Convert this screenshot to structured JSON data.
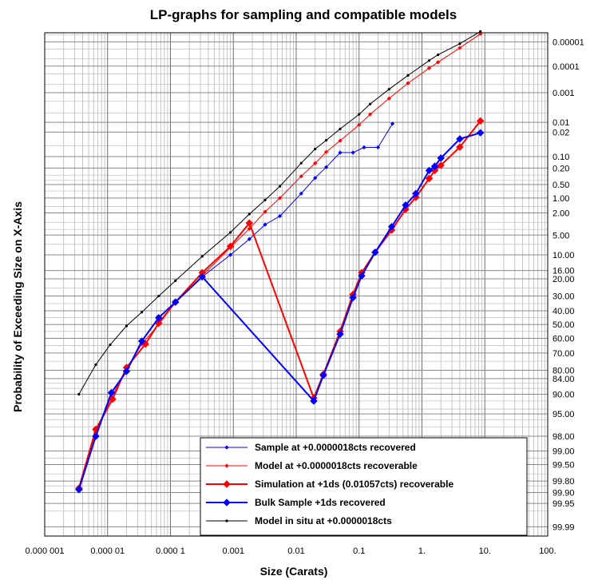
{
  "chart_data": {
    "type": "line",
    "title": "LP-graphs for sampling and compatible models",
    "xlabel": "Size (Carats)",
    "ylabel": "Probability of Exceeding Size on X-Axis",
    "x_scale": "log",
    "y_scale": "probability",
    "xlim": [
      1e-06,
      100
    ],
    "ylim_percent": [
      99.995,
      4e-06
    ],
    "grid": true,
    "legend_position": "bottom-right",
    "x_ticks": [
      "0.000 001",
      "0.000 01",
      "0.000 1",
      "0.001",
      "0.01",
      "0.1",
      "1.",
      "10.",
      "100."
    ],
    "x_tick_values": [
      1e-06,
      1e-05,
      0.0001,
      0.001,
      0.01,
      0.1,
      1,
      10,
      100
    ],
    "y_ticks": [
      "0.00001",
      "0.0001",
      "0.001",
      "0.01",
      "0.02",
      "0.10",
      "0.20",
      "0.50",
      "1.00",
      "2.00",
      "5.00",
      "10.00",
      "16.00",
      "20.00",
      "30.00",
      "40.00",
      "50.00",
      "60.00",
      "70.00",
      "80.00",
      "84.00",
      "90.00",
      "95.00",
      "98.00",
      "99.00",
      "99.50",
      "99.80",
      "99.90",
      "99.95",
      "99.99"
    ],
    "y_tick_values": [
      1e-05,
      0.0001,
      0.001,
      0.01,
      0.02,
      0.1,
      0.2,
      0.5,
      1,
      2,
      5,
      10,
      16,
      20,
      30,
      40,
      50,
      60,
      70,
      80,
      84,
      90,
      95,
      98,
      99,
      99.5,
      99.8,
      99.9,
      99.95,
      99.99
    ],
    "series": [
      {
        "name": "Sample at +0.0000018cts recovered",
        "color": "#0000ff",
        "marker": "small-diamond",
        "line_width": 1,
        "points": [
          [
            3.5e-06,
            99.88
          ],
          [
            6.5e-06,
            97.8
          ],
          [
            1.15e-05,
            89.5
          ],
          [
            2e-05,
            80.5
          ],
          [
            3.5e-05,
            62
          ],
          [
            6.5e-05,
            45
          ],
          [
            0.00012,
            34
          ],
          [
            0.00032,
            19
          ],
          [
            0.0009,
            10
          ],
          [
            0.0018,
            5.8
          ],
          [
            0.0032,
            3.3
          ],
          [
            0.0055,
            2.3
          ],
          [
            0.012,
            0.8
          ],
          [
            0.02,
            0.35
          ],
          [
            0.03,
            0.19
          ],
          [
            0.05,
            0.078
          ],
          [
            0.08,
            0.078
          ],
          [
            0.12,
            0.056
          ],
          [
            0.2,
            0.056
          ],
          [
            0.34,
            0.011
          ]
        ]
      },
      {
        "name": "Model at +0.0000018cts recoverable",
        "color": "#ff0000",
        "marker": "small-diamond",
        "line_width": 1,
        "points": [
          [
            3.5e-06,
            99.86
          ],
          [
            6.5e-06,
            97.6
          ],
          [
            1.15e-05,
            91
          ],
          [
            2e-05,
            79
          ],
          [
            3.5e-05,
            64
          ],
          [
            6.5e-05,
            50
          ],
          [
            0.00012,
            34
          ],
          [
            0.00032,
            18.5
          ],
          [
            0.0009,
            7.8
          ],
          [
            0.0018,
            3.9
          ],
          [
            0.0032,
            1.9
          ],
          [
            0.0055,
            1.0
          ],
          [
            0.012,
            0.32
          ],
          [
            0.02,
            0.15
          ],
          [
            0.03,
            0.075
          ],
          [
            0.05,
            0.036
          ],
          [
            0.1,
            0.012
          ],
          [
            0.15,
            0.0055
          ],
          [
            0.3,
            0.0016
          ],
          [
            0.6,
            0.00045
          ],
          [
            1.3,
            0.00012
          ],
          [
            1.8,
            7e-05
          ],
          [
            4,
            1.8e-05
          ],
          [
            8.5,
            4.5e-06
          ]
        ]
      },
      {
        "name": "Simulation at +1ds (0.01057cts) recoverable",
        "color": "#ff0000",
        "marker": "diamond",
        "line_width": 2,
        "points": [
          [
            3.5e-06,
            99.87
          ],
          [
            6.5e-06,
            97.3
          ],
          [
            1.2e-05,
            91.5
          ],
          [
            2e-05,
            78.5
          ],
          [
            4e-05,
            64
          ],
          [
            6.5e-05,
            49
          ],
          [
            0.00012,
            34
          ],
          [
            0.00032,
            17
          ],
          [
            0.0009,
            7.5
          ],
          [
            0.0018,
            3.1
          ],
          [
            0.019,
            91.2
          ],
          [
            0.027,
            82
          ],
          [
            0.05,
            55
          ],
          [
            0.08,
            29
          ],
          [
            0.11,
            17
          ],
          [
            0.18,
            9.2
          ],
          [
            0.33,
            4.1
          ],
          [
            0.55,
            1.7
          ],
          [
            0.8,
            0.96
          ],
          [
            1.3,
            0.36
          ],
          [
            1.6,
            0.23
          ],
          [
            2.0,
            0.17
          ],
          [
            4,
            0.055
          ],
          [
            8.5,
            0.009
          ]
        ]
      },
      {
        "name": "Bulk Sample +1ds recovered",
        "color": "#0000ff",
        "marker": "diamond",
        "line_width": 2,
        "points": [
          [
            3.5e-06,
            99.88
          ],
          [
            6.5e-06,
            98.0
          ],
          [
            1.15e-05,
            89.5
          ],
          [
            2e-05,
            80.5
          ],
          [
            3.5e-05,
            62
          ],
          [
            6.5e-05,
            45
          ],
          [
            0.00012,
            34
          ],
          [
            0.00032,
            19
          ],
          [
            0.019,
            92
          ],
          [
            0.027,
            82.5
          ],
          [
            0.05,
            57
          ],
          [
            0.08,
            31
          ],
          [
            0.11,
            18.5
          ],
          [
            0.18,
            9.2
          ],
          [
            0.33,
            3.6
          ],
          [
            0.55,
            1.4
          ],
          [
            0.8,
            0.8
          ],
          [
            1.3,
            0.23
          ],
          [
            1.6,
            0.18
          ],
          [
            2.0,
            0.11
          ],
          [
            4,
            0.032
          ],
          [
            8.5,
            0.021
          ]
        ]
      },
      {
        "name": "Model in situ at +0.0000018cts",
        "color": "#000000",
        "marker": "small-dot",
        "line_width": 1,
        "points": [
          [
            3.5e-06,
            90
          ],
          [
            6.5e-06,
            77
          ],
          [
            1.1e-05,
            64.5
          ],
          [
            2e-05,
            51
          ],
          [
            3.5e-05,
            41
          ],
          [
            6.5e-05,
            30
          ],
          [
            0.00012,
            21
          ],
          [
            0.00032,
            10.5
          ],
          [
            0.0009,
            4.5
          ],
          [
            0.0018,
            2.1
          ],
          [
            0.0032,
            1.1
          ],
          [
            0.0055,
            0.55
          ],
          [
            0.012,
            0.15
          ],
          [
            0.02,
            0.062
          ],
          [
            0.03,
            0.035
          ],
          [
            0.05,
            0.016
          ],
          [
            0.1,
            0.0055
          ],
          [
            0.15,
            0.0025
          ],
          [
            0.3,
            0.00075
          ],
          [
            0.6,
            0.00023
          ],
          [
            1.3,
            6e-05
          ],
          [
            1.8,
            3.5e-05
          ],
          [
            4,
            1.2e-05
          ],
          [
            8.5,
            3.5e-06
          ]
        ]
      }
    ]
  }
}
